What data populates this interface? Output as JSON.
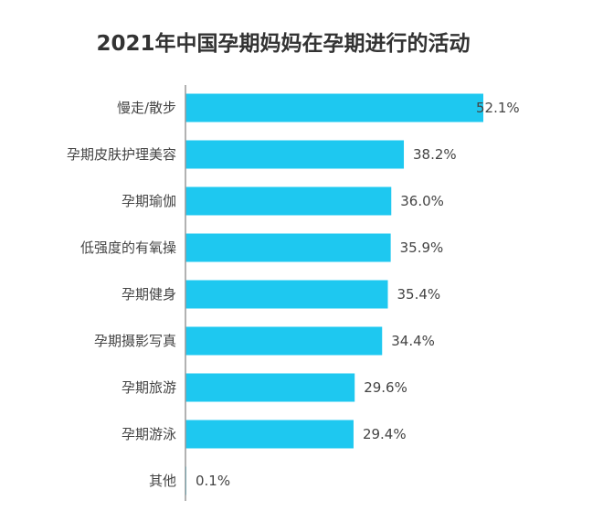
{
  "chart_data": {
    "type": "bar",
    "orientation": "horizontal",
    "title": "2021年中国孕期妈妈在孕期进行的活动",
    "categories": [
      "慢走/散步",
      "孕期皮肤护理美容",
      "孕期瑜伽",
      "低强度的有氧操",
      "孕期健身",
      "孕期摄影写真",
      "孕期旅游",
      "孕期游泳",
      "其他"
    ],
    "values": [
      52.1,
      38.2,
      36.0,
      35.9,
      35.4,
      34.4,
      29.6,
      29.4,
      0.1
    ],
    "value_labels": [
      "52.1%",
      "38.2%",
      "36.0%",
      "35.9%",
      "35.4%",
      "34.4%",
      "29.6%",
      "29.4%",
      "0.1%"
    ],
    "unit": "%",
    "xlim": [
      0,
      52.1
    ],
    "grid": false,
    "legend": "none",
    "bar_color": "#1ec8f0",
    "axis_color": "#999999"
  }
}
